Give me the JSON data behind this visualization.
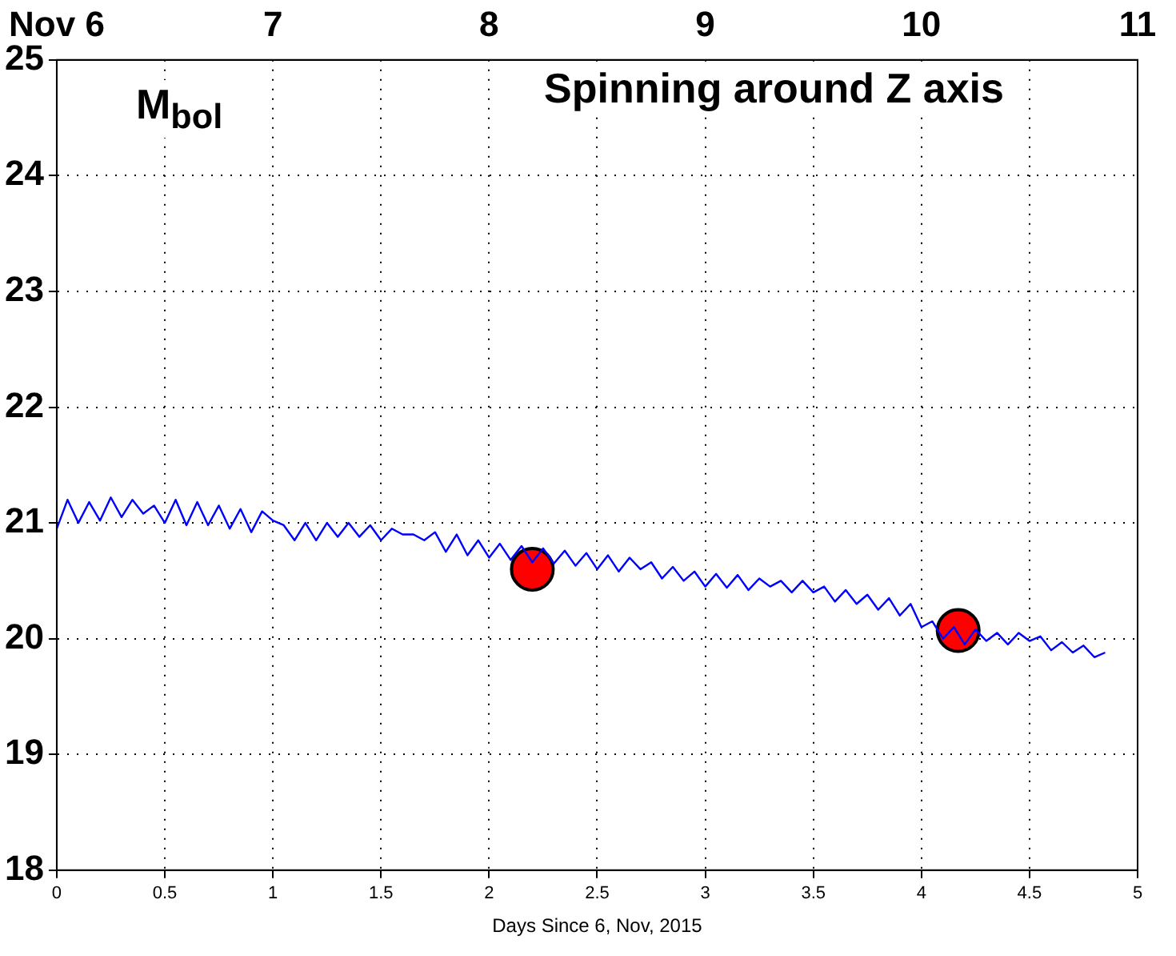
{
  "chart_data": {
    "type": "line",
    "xlabel": "Days Since 6, Nov, 2015",
    "annotations": [
      "M$_{bol}$",
      "Spinning around Z axis"
    ],
    "xlim": [
      0,
      5
    ],
    "xticks": [
      0,
      0.5,
      1,
      1.5,
      2,
      2.5,
      3,
      3.5,
      4,
      4.5,
      5
    ],
    "x2lim": [
      6,
      11
    ],
    "x2ticks": [
      {
        "value": 6,
        "label": "Nov 6"
      },
      7,
      8,
      9,
      10,
      11
    ],
    "ylim": [
      18,
      25
    ],
    "yticks": [
      18,
      19,
      20,
      21,
      22,
      23,
      24,
      25
    ],
    "grid": true,
    "series": [
      {
        "type": "line",
        "color": "#0000ff",
        "line_style": "solid",
        "marker": "none",
        "x": [
          0,
          0.05,
          0.1,
          0.15,
          0.2,
          0.25,
          0.3,
          0.35,
          0.4,
          0.45,
          0.5,
          0.55,
          0.6,
          0.65,
          0.7,
          0.75,
          0.8,
          0.85,
          0.9,
          0.95,
          1,
          1.05,
          1.1,
          1.15,
          1.2,
          1.25,
          1.3,
          1.35,
          1.4,
          1.45,
          1.5,
          1.55,
          1.6,
          1.65,
          1.7,
          1.75,
          1.8,
          1.85,
          1.9,
          1.95,
          2,
          2.05,
          2.1,
          2.15,
          2.2,
          2.25,
          2.3,
          2.35,
          2.4,
          2.45,
          2.5,
          2.55,
          2.6,
          2.65,
          2.7,
          2.75,
          2.8,
          2.85,
          2.9,
          2.95,
          3,
          3.05,
          3.1,
          3.15,
          3.2,
          3.25,
          3.3,
          3.35,
          3.4,
          3.45,
          3.5,
          3.55,
          3.6,
          3.65,
          3.7,
          3.75,
          3.8,
          3.85,
          3.9,
          3.95,
          4,
          4.05,
          4.1,
          4.15,
          4.2,
          4.25,
          4.3,
          4.35,
          4.4,
          4.45,
          4.5,
          4.55,
          4.6,
          4.65,
          4.7,
          4.75,
          4.8,
          4.85
        ],
        "values": [
          20.95,
          21.2,
          21.0,
          21.18,
          21.02,
          21.22,
          21.05,
          21.2,
          21.08,
          21.15,
          21.0,
          21.2,
          20.98,
          21.18,
          20.98,
          21.15,
          20.95,
          21.12,
          20.92,
          21.1,
          21.02,
          20.98,
          20.85,
          21.0,
          20.85,
          21.0,
          20.88,
          21.0,
          20.88,
          20.98,
          20.85,
          20.95,
          20.9,
          20.9,
          20.85,
          20.92,
          20.75,
          20.9,
          20.72,
          20.85,
          20.7,
          20.82,
          20.68,
          20.8,
          20.66,
          20.78,
          20.65,
          20.76,
          20.63,
          20.74,
          20.6,
          20.72,
          20.58,
          20.7,
          20.6,
          20.66,
          20.52,
          20.62,
          20.5,
          20.58,
          20.45,
          20.56,
          20.44,
          20.55,
          20.42,
          20.52,
          20.45,
          20.5,
          20.4,
          20.5,
          20.4,
          20.45,
          20.32,
          20.42,
          20.3,
          20.38,
          20.25,
          20.35,
          20.2,
          20.3,
          20.1,
          20.15,
          20.0,
          20.1,
          19.95,
          20.08,
          19.98,
          20.05,
          19.95,
          20.05,
          19.98,
          20.02,
          19.9,
          19.97,
          19.88,
          19.94,
          19.84,
          19.88
        ]
      },
      {
        "type": "scatter",
        "color": "#ff0000",
        "marker": "circle",
        "x": [
          2.2,
          4.17
        ],
        "values": [
          20.6,
          20.07
        ]
      }
    ]
  }
}
